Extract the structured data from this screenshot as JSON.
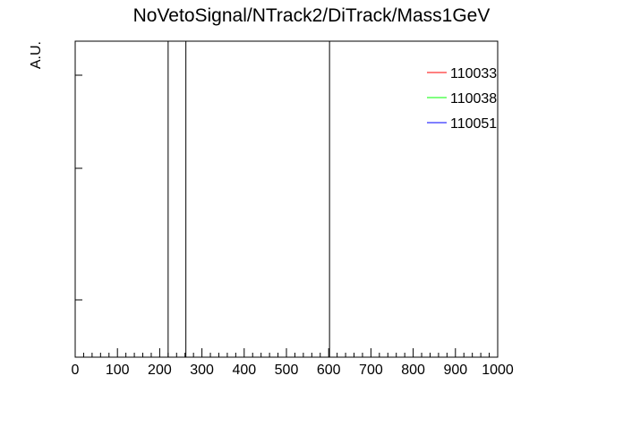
{
  "chart_data": {
    "type": "line",
    "title": "NoVetoSignal/NTrack2/DiTrack/Mass1GeV",
    "xlabel": "",
    "ylabel": "A.U.",
    "xlim": [
      0,
      1000
    ],
    "x_ticks": [
      "0",
      "100",
      "200",
      "300",
      "400",
      "500",
      "600",
      "700",
      "800",
      "900",
      "1000"
    ],
    "x_minor_step": 20,
    "y_ticks_unlabeled": 3,
    "grid": false,
    "legend_position": "top-right",
    "series": [
      {
        "name": "110033",
        "color": "#ff0000",
        "x": [],
        "y": []
      },
      {
        "name": "110038",
        "color": "#00ff00",
        "x": [],
        "y": []
      },
      {
        "name": "110051",
        "color": "#0000ff",
        "x": [],
        "y": []
      }
    ],
    "spikes": [
      {
        "x": 220
      },
      {
        "x": 262
      },
      {
        "x": 602
      }
    ]
  }
}
